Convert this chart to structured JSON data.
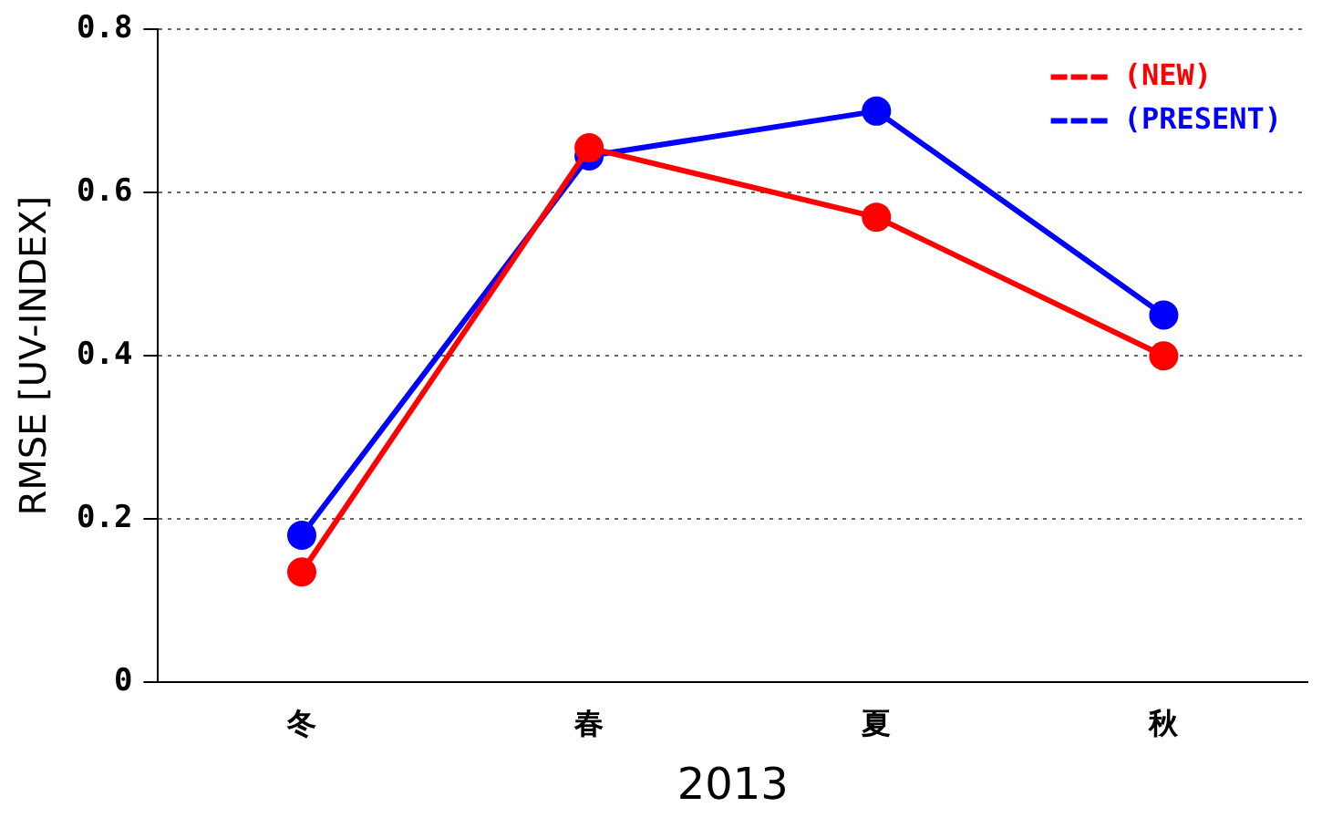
{
  "chart_data": {
    "type": "line",
    "categories": [
      "冬",
      "春",
      "夏",
      "秋"
    ],
    "series": [
      {
        "name": "(NEW)",
        "color": "#ff0000",
        "values": [
          0.135,
          0.655,
          0.57,
          0.4
        ]
      },
      {
        "name": "(PRESENT)",
        "color": "#0000ff",
        "values": [
          0.18,
          0.645,
          0.7,
          0.45
        ]
      }
    ],
    "xlabel": "2013",
    "ylabel": "RMSE [UV-INDEX]",
    "ylim": [
      0,
      0.8
    ],
    "yticks": [
      0,
      0.2,
      0.4,
      0.6,
      0.8
    ],
    "grid": "y",
    "legend": "top right",
    "marker": "circle",
    "line_style": "solid"
  }
}
